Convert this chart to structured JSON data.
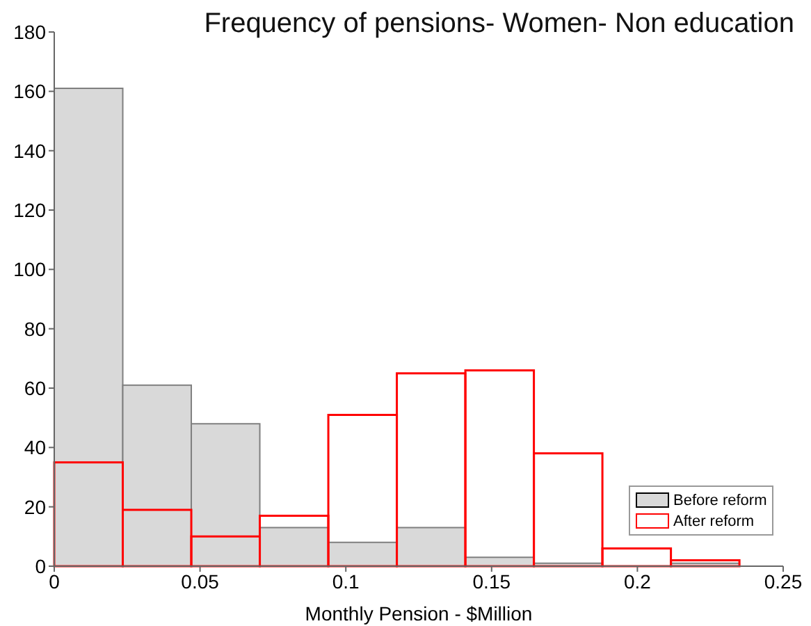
{
  "chart_data": {
    "type": "histogram",
    "title": "Frequency of pensions- Women- Non education",
    "xlabel": "Monthly Pension - $Million",
    "bins": [
      0,
      0.0235,
      0.047,
      0.0705,
      0.094,
      0.1175,
      0.141,
      0.1645,
      0.188,
      0.2115,
      0.235
    ],
    "series": [
      {
        "name": "Before reform",
        "color": "#d9d9d9",
        "values": [
          161,
          61,
          48,
          13,
          8,
          13,
          3,
          1,
          0,
          1
        ]
      },
      {
        "name": "After reform",
        "color": "#ff0000",
        "values": [
          35,
          19,
          10,
          17,
          51,
          65,
          66,
          38,
          6,
          2
        ]
      }
    ],
    "xlim": [
      0,
      0.25
    ],
    "xticks": [
      0,
      0.05,
      0.1,
      0.15,
      0.2,
      0.25
    ],
    "ylim": [
      0,
      180
    ],
    "yticks": [
      0,
      20,
      40,
      60,
      80,
      100,
      120,
      140,
      160,
      180
    ],
    "grid": false,
    "legend": "bottom right"
  }
}
